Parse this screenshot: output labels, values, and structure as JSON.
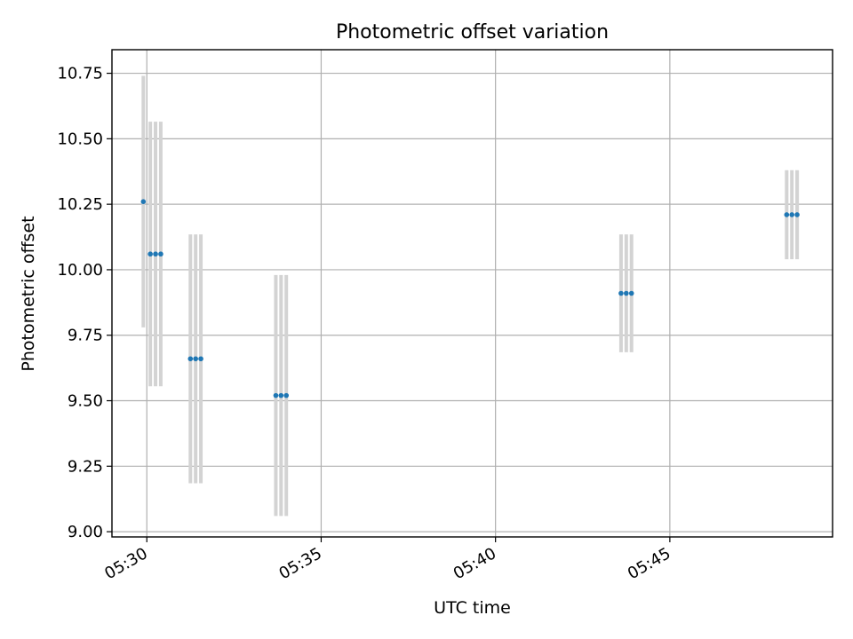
{
  "chart_data": {
    "type": "scatter",
    "title": "Photometric offset variation",
    "xlabel": "UTC time",
    "ylabel": "Photometric offset",
    "x_tick_labels": [
      "05:30",
      "05:35",
      "05:40",
      "05:45"
    ],
    "y_tick_labels": [
      "9.00",
      "9.25",
      "9.50",
      "9.75",
      "10.00",
      "10.25",
      "10.50",
      "10.75"
    ],
    "xlim": [
      "05:29:00",
      "05:49:40"
    ],
    "ylim": [
      8.98,
      10.84
    ],
    "grid": true,
    "series": [
      {
        "points": [
          {
            "x": "05:29:54",
            "y": 10.26,
            "err": 0.48
          },
          {
            "x": "05:30:06",
            "y": 10.06,
            "err": 0.505
          },
          {
            "x": "05:30:15",
            "y": 10.06,
            "err": 0.505
          },
          {
            "x": "05:30:24",
            "y": 10.06,
            "err": 0.505
          },
          {
            "x": "05:31:15",
            "y": 9.66,
            "err": 0.475
          },
          {
            "x": "05:31:24",
            "y": 9.66,
            "err": 0.475
          },
          {
            "x": "05:31:33",
            "y": 9.66,
            "err": 0.475
          },
          {
            "x": "05:33:42",
            "y": 9.52,
            "err": 0.46
          },
          {
            "x": "05:33:51",
            "y": 9.52,
            "err": 0.46
          },
          {
            "x": "05:34:00",
            "y": 9.52,
            "err": 0.46
          },
          {
            "x": "05:43:36",
            "y": 9.91,
            "err": 0.225
          },
          {
            "x": "05:43:45",
            "y": 9.91,
            "err": 0.225
          },
          {
            "x": "05:43:54",
            "y": 9.91,
            "err": 0.225
          },
          {
            "x": "05:48:21",
            "y": 10.21,
            "err": 0.17
          },
          {
            "x": "05:48:30",
            "y": 10.21,
            "err": 0.17
          },
          {
            "x": "05:48:39",
            "y": 10.21,
            "err": 0.17
          }
        ]
      }
    ],
    "colors": {
      "points": "#1f77b4",
      "errorbars": "#d3d3d3",
      "grid": "#b0b0b0"
    }
  }
}
